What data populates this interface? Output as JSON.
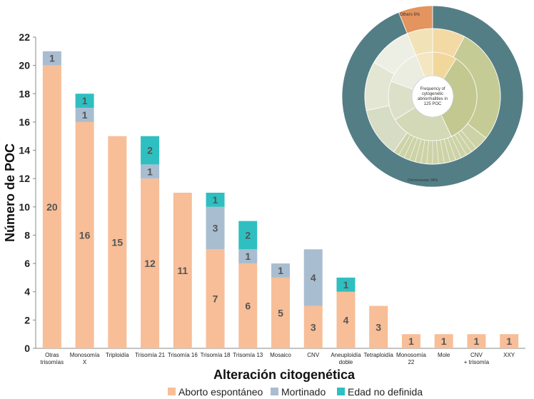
{
  "chart_data": {
    "type": "bar",
    "stacked": true,
    "ylabel": "Número de POC",
    "xlabel": "Alteración citogenética",
    "ylim": [
      0,
      22
    ],
    "yticks": [
      0,
      2,
      4,
      6,
      8,
      10,
      12,
      14,
      16,
      18,
      20,
      22
    ],
    "grid": false,
    "legend_position": "bottom",
    "categories": [
      [
        "Otras",
        "trisomías"
      ],
      [
        "Monosomía",
        "X"
      ],
      [
        "Triploidía"
      ],
      [
        "Trisomía 21"
      ],
      [
        "Trisomía 16"
      ],
      [
        "Trisomía 18"
      ],
      [
        "Trisomía 13"
      ],
      [
        "Mosaico"
      ],
      [
        "CNV"
      ],
      [
        "Aneuploidía",
        "doble"
      ],
      [
        "Tetraploidía"
      ],
      [
        "Monosomía",
        "22"
      ],
      [
        "Mole"
      ],
      [
        "CNV",
        "+ trisomía"
      ],
      [
        "XXY"
      ]
    ],
    "series": [
      {
        "name": "Aborto espontáneo",
        "color": "#F7BE98",
        "values": [
          20,
          16,
          15,
          12,
          11,
          7,
          6,
          5,
          3,
          4,
          3,
          1,
          1,
          1,
          1
        ],
        "labels": [
          "20",
          "16",
          "15",
          "12",
          "11",
          "7",
          "6",
          "5",
          "3",
          "4",
          "3",
          "1",
          "1",
          "1",
          "1"
        ]
      },
      {
        "name": "Mortinado",
        "color": "#A9BDD1",
        "values": [
          1,
          1,
          0,
          1,
          0,
          3,
          1,
          1,
          4,
          0,
          0,
          0,
          0,
          0,
          0
        ],
        "labels": [
          "1",
          "1",
          "",
          "1",
          "",
          "3",
          "1",
          "1",
          "4",
          "",
          "",
          "",
          "",
          "",
          ""
        ]
      },
      {
        "name": "Edad no definida",
        "color": "#2FBFC1",
        "values": [
          0,
          1,
          0,
          2,
          0,
          1,
          2,
          0,
          0,
          1,
          0,
          0,
          0,
          0,
          0
        ],
        "labels": [
          "",
          "1",
          "",
          "2",
          "",
          "1",
          "2",
          "",
          "",
          "1",
          "",
          "",
          "",
          "",
          ""
        ]
      }
    ]
  },
  "inset": {
    "center_text": [
      "Frequency of",
      "cytogenetic",
      "abnormalities in",
      "125 POC"
    ],
    "outer_labels": {
      "others": "Others 6%",
      "chromosomic": "Chromosomic 94%"
    },
    "colors": {
      "outer": "#547E85",
      "others": "#E4945E"
    }
  }
}
